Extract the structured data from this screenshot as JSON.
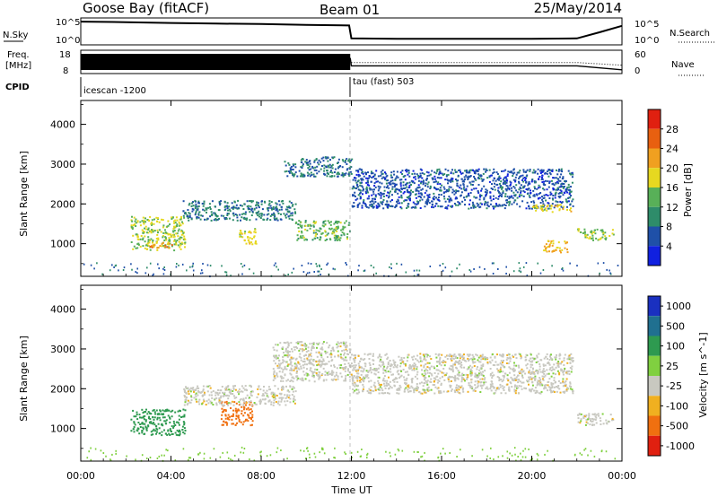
{
  "header": {
    "station": "Goose Bay (fitACF)",
    "beam": "Beam 01",
    "date": "25/May/2014"
  },
  "noise_panel": {
    "left_label": "N.Sky",
    "right_label": "N.Search",
    "left_ticks": [
      "10^5",
      "10^0"
    ],
    "right_ticks": [
      "10^5",
      "10^0"
    ]
  },
  "freq_panel": {
    "left_label_1": "Freq.",
    "left_label_2": "[MHz]",
    "right_label": "Nave",
    "left_ticks": [
      "18",
      "8"
    ],
    "right_ticks": [
      "60",
      "0"
    ]
  },
  "cpid": {
    "label": "CPID",
    "segments": [
      {
        "name": "icescan -1200",
        "start_hour": 0
      },
      {
        "name": "tau (fast) 503",
        "start_hour": 12
      }
    ]
  },
  "power_panel": {
    "ylabel": "Slant Range [km]",
    "yticks": [
      "1000",
      "2000",
      "3000",
      "4000"
    ],
    "colorbar_label": "Power [dB]",
    "colorbar_ticks": [
      "4",
      "8",
      "12",
      "16",
      "20",
      "24",
      "28"
    ],
    "colors": [
      "#1020e0",
      "#1f50a8",
      "#2e8c6a",
      "#58b058",
      "#e6d820",
      "#f0a020",
      "#e86010",
      "#e02010"
    ]
  },
  "velocity_panel": {
    "ylabel": "Slant Range [km]",
    "yticks": [
      "1000",
      "2000",
      "3000",
      "4000"
    ],
    "colorbar_label": "Velocity [m s^-1]",
    "colorbar_ticks": [
      "1000",
      "500",
      "100",
      "25",
      "-25",
      "-100",
      "-500",
      "-1000"
    ],
    "colors": [
      "#1a30c0",
      "#207090",
      "#2e9a50",
      "#80d040",
      "#c8c8c0",
      "#f0b020",
      "#f07010",
      "#e02010"
    ]
  },
  "xaxis": {
    "label": "Time UT",
    "ticks": [
      "00:00",
      "04:00",
      "08:00",
      "12:00",
      "16:00",
      "20:00",
      "00:00"
    ]
  },
  "chart_data": [
    {
      "type": "line",
      "name": "noise",
      "x_hours": [
        0,
        2,
        4,
        6,
        8,
        10,
        11.9,
        12,
        14,
        16,
        18,
        20,
        22,
        23,
        24
      ],
      "series": [
        {
          "name": "N.Sky",
          "values": [
            40000,
            30000,
            20000,
            15000,
            12000,
            8000,
            6000,
            10,
            8,
            8,
            8,
            8,
            10,
            200,
            5000
          ]
        }
      ],
      "ylim": [
        1,
        100000
      ],
      "log_scale": true
    },
    {
      "type": "line",
      "name": "frequency",
      "x_hours": [
        0,
        11.95,
        12,
        22,
        24
      ],
      "series": [
        {
          "name": "Freq",
          "values": [
            15,
            15,
            11,
            11,
            9
          ]
        },
        {
          "name": "Nave",
          "values": [
            35,
            35,
            28,
            28,
            20
          ]
        }
      ],
      "ylim": [
        8,
        18
      ]
    },
    {
      "type": "heatmap",
      "name": "power",
      "x": "time (hours UT)",
      "y": "slant range (km)",
      "xlim": [
        0,
        24
      ],
      "ylim": [
        180,
        4600
      ],
      "features": [
        {
          "x": [
            2.2,
            4.6
          ],
          "y": [
            850,
            1700
          ],
          "value": 16
        },
        {
          "x": [
            3.0,
            4.2
          ],
          "y": [
            900,
            1050
          ],
          "value": 22
        },
        {
          "x": [
            4.5,
            9.5
          ],
          "y": [
            1600,
            2100
          ],
          "value": 9
        },
        {
          "x": [
            7.0,
            7.8
          ],
          "y": [
            1000,
            1400
          ],
          "value": 18
        },
        {
          "x": [
            9.5,
            11.9
          ],
          "y": [
            1100,
            1600
          ],
          "value": 14
        },
        {
          "x": [
            9.0,
            12.0
          ],
          "y": [
            2700,
            3200
          ],
          "value": 8
        },
        {
          "x": [
            12.0,
            21.8
          ],
          "y": [
            1900,
            2900
          ],
          "value": 6
        },
        {
          "x": [
            20.0,
            21.8
          ],
          "y": [
            1800,
            2000
          ],
          "value": 18
        },
        {
          "x": [
            20.5,
            21.6
          ],
          "y": [
            800,
            1100
          ],
          "value": 20
        },
        {
          "x": [
            22.0,
            23.6
          ],
          "y": [
            1100,
            1400
          ],
          "value": 16
        }
      ]
    },
    {
      "type": "heatmap",
      "name": "velocity",
      "x": "time (hours UT)",
      "y": "slant range (km)",
      "xlim": [
        0,
        24
      ],
      "ylim": [
        180,
        4600
      ],
      "features": [
        {
          "x": [
            2.2,
            4.6
          ],
          "y": [
            850,
            1500
          ],
          "value": 150
        },
        {
          "x": [
            6.2,
            7.6
          ],
          "y": [
            1100,
            1700
          ],
          "value": -150
        },
        {
          "x": [
            4.5,
            9.5
          ],
          "y": [
            1600,
            2100
          ],
          "value": 0
        },
        {
          "x": [
            8.5,
            12.0
          ],
          "y": [
            2200,
            3200
          ],
          "value": 0
        },
        {
          "x": [
            12.0,
            21.8
          ],
          "y": [
            1900,
            2900
          ],
          "value": 0
        },
        {
          "x": [
            22.0,
            23.6
          ],
          "y": [
            1100,
            1400
          ],
          "value": 0
        }
      ]
    }
  ]
}
